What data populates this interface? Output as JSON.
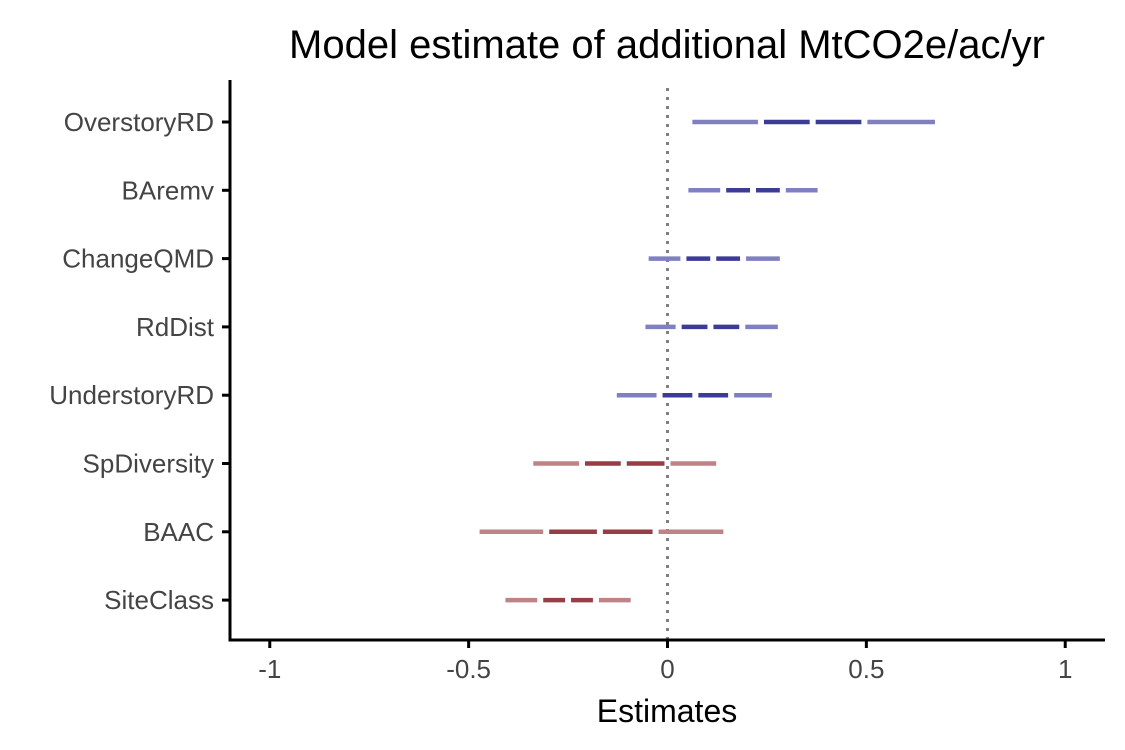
{
  "chart_data": {
    "type": "forest",
    "title": "Model estimate of additional MtCO2e/ac/yr",
    "xlabel": "Estimates",
    "ylabel": "",
    "xlim": [
      -1.1,
      1.1
    ],
    "x_ticks": [
      -1,
      -0.5,
      0,
      0.5,
      1
    ],
    "x_tick_labels": [
      "-1",
      "-0.5",
      "0",
      "0.5",
      "1"
    ],
    "reference_line": 0,
    "grid": false,
    "colors": {
      "positive_outer": "#8080c0",
      "positive_inner": "#3c3c96",
      "negative_outer": "#bf8285",
      "negative_inner": "#983d46",
      "reference_line": "#808080",
      "axis": "#000000"
    },
    "terms": [
      {
        "label": "OverstoryRD",
        "outer_low": 0.055,
        "inner_low": 0.235,
        "estimate": 0.365,
        "inner_high": 0.495,
        "outer_high": 0.68
      },
      {
        "label": "BAremv",
        "outer_low": 0.045,
        "inner_low": 0.14,
        "estimate": 0.215,
        "inner_high": 0.29,
        "outer_high": 0.385
      },
      {
        "label": "ChangeQMD",
        "outer_low": -0.055,
        "inner_low": 0.04,
        "estimate": 0.115,
        "inner_high": 0.19,
        "outer_high": 0.29
      },
      {
        "label": "RdDist",
        "outer_low": -0.063,
        "inner_low": 0.028,
        "estimate": 0.108,
        "inner_high": 0.188,
        "outer_high": 0.285
      },
      {
        "label": "UnderstoryRD",
        "outer_low": -0.135,
        "inner_low": -0.02,
        "estimate": 0.07,
        "inner_high": 0.16,
        "outer_high": 0.27
      },
      {
        "label": "SpDiversity",
        "outer_low": -0.345,
        "inner_low": -0.215,
        "estimate": -0.11,
        "inner_high": 0.0,
        "outer_high": 0.13
      },
      {
        "label": "BAAC",
        "outer_low": -0.48,
        "inner_low": -0.305,
        "estimate": -0.17,
        "inner_high": -0.03,
        "outer_high": 0.148
      },
      {
        "label": "SiteClass",
        "outer_low": -0.415,
        "inner_low": -0.32,
        "estimate": -0.25,
        "inner_high": -0.18,
        "outer_high": -0.085
      }
    ]
  }
}
